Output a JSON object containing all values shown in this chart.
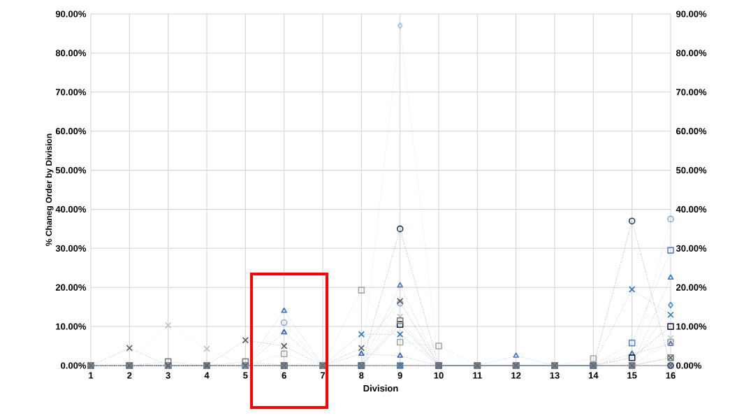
{
  "chart_data": {
    "type": "line",
    "xlabel": "Division",
    "ylabel": "% Chaneg Order by Division",
    "categories": [
      "1",
      "2",
      "3",
      "4",
      "5",
      "6",
      "7",
      "8",
      "9",
      "10",
      "11",
      "12",
      "13",
      "14",
      "15",
      "16"
    ],
    "ylim": [
      0,
      90
    ],
    "y2lim": [
      0,
      90
    ],
    "yticks": [
      {
        "value": 0,
        "label": "0.00%"
      },
      {
        "value": 10,
        "label": "10.00%"
      },
      {
        "value": 20,
        "label": "20.00%"
      },
      {
        "value": 30,
        "label": "30.00%"
      },
      {
        "value": 40,
        "label": "40.00%"
      },
      {
        "value": 50,
        "label": "50.00%"
      },
      {
        "value": 60,
        "label": "60.00%"
      },
      {
        "value": 70,
        "label": "70.00%"
      },
      {
        "value": 80,
        "label": "80.00%"
      },
      {
        "value": 90,
        "label": "90.00%"
      }
    ],
    "y2ticks": [
      {
        "value": 0,
        "label": "0.00%"
      },
      {
        "value": 10,
        "label": "10.00%"
      },
      {
        "value": 20,
        "label": "20.00%"
      },
      {
        "value": 30,
        "label": "30.00%"
      },
      {
        "value": 40,
        "label": "40.00%"
      },
      {
        "value": 50,
        "label": "50.00%"
      },
      {
        "value": 60,
        "label": "60.00%"
      },
      {
        "value": 70,
        "label": "70.00%"
      },
      {
        "value": 80,
        "label": "80.00%"
      },
      {
        "value": 90,
        "label": "90.00%"
      }
    ],
    "grid": true,
    "line_style": "dotted",
    "series": [
      {
        "color": "#9dc3e6",
        "marker": "diamond",
        "values": [
          0,
          0,
          0,
          0,
          0,
          0,
          0,
          0,
          87,
          0,
          0,
          0,
          0,
          0,
          0,
          0
        ]
      },
      {
        "color": "#1f3864",
        "marker": "circle",
        "values": [
          0,
          0,
          0,
          0,
          0,
          0,
          0,
          0,
          35,
          0,
          0,
          0,
          0,
          0,
          37,
          0
        ]
      },
      {
        "color": "#8faadc",
        "marker": "circle",
        "values": [
          0,
          0,
          0,
          0,
          0,
          11,
          0,
          0,
          16,
          0,
          0,
          0,
          0,
          0,
          0,
          37.5
        ]
      },
      {
        "color": "#4472c4",
        "marker": "triangle",
        "values": [
          0,
          0,
          0,
          0,
          0,
          14,
          0,
          0,
          20.5,
          0,
          0,
          2.5,
          0,
          0,
          0,
          22.5
        ]
      },
      {
        "color": "#3a62b0",
        "marker": "triangle",
        "values": [
          0,
          0,
          0,
          0,
          0,
          8.5,
          0,
          3,
          2.5,
          0,
          0,
          0,
          0,
          0,
          3,
          5.5
        ]
      },
      {
        "color": "#5b86d6",
        "marker": "square",
        "values": [
          0,
          0,
          0,
          0,
          0,
          0,
          0,
          0,
          0,
          0,
          0,
          0,
          0,
          0,
          5.8,
          29.5
        ]
      },
      {
        "color": "#172a4e",
        "marker": "square",
        "values": [
          0,
          0,
          0,
          0,
          0,
          0,
          0,
          0,
          10.5,
          0,
          0,
          0,
          0,
          0,
          2,
          10
        ]
      },
      {
        "color": "#2e75b6",
        "marker": "cross",
        "values": [
          0,
          0,
          0,
          0,
          0,
          0,
          0,
          8,
          8,
          0,
          0,
          0,
          0,
          0,
          19.5,
          13
        ]
      },
      {
        "color": "#3f86c8",
        "marker": "diamond",
        "values": [
          0,
          0,
          0,
          0,
          0,
          0,
          0,
          0,
          0,
          0,
          0,
          0,
          0,
          0,
          0,
          15.5
        ]
      },
      {
        "color": "#595959",
        "marker": "cross",
        "values": [
          0,
          4.5,
          0,
          0,
          6.5,
          5,
          0,
          4.5,
          16.5,
          0,
          0,
          0,
          0,
          0,
          0,
          2
        ]
      },
      {
        "color": "#bfbfbf",
        "marker": "cross",
        "values": [
          0,
          0,
          10.3,
          4.3,
          0,
          0,
          0,
          0,
          12.5,
          0,
          0,
          0,
          0,
          0,
          0,
          7
        ]
      },
      {
        "color": "#a5a5a5",
        "marker": "square",
        "values": [
          0,
          0,
          0,
          0,
          0,
          3,
          0,
          19.3,
          6,
          5,
          0,
          0,
          0,
          1.8,
          0,
          6
        ]
      },
      {
        "color": "#7f7f7f",
        "marker": "square",
        "values": [
          0,
          0,
          1,
          0,
          1,
          0,
          0,
          0,
          11.5,
          0,
          0,
          0,
          0,
          0,
          0,
          2
        ]
      },
      {
        "color": "#666666",
        "marker": "cross",
        "values": [
          0,
          0,
          0,
          0,
          0,
          0,
          0,
          0,
          0,
          0,
          0,
          0,
          0,
          0,
          0,
          0
        ]
      }
    ]
  }
}
